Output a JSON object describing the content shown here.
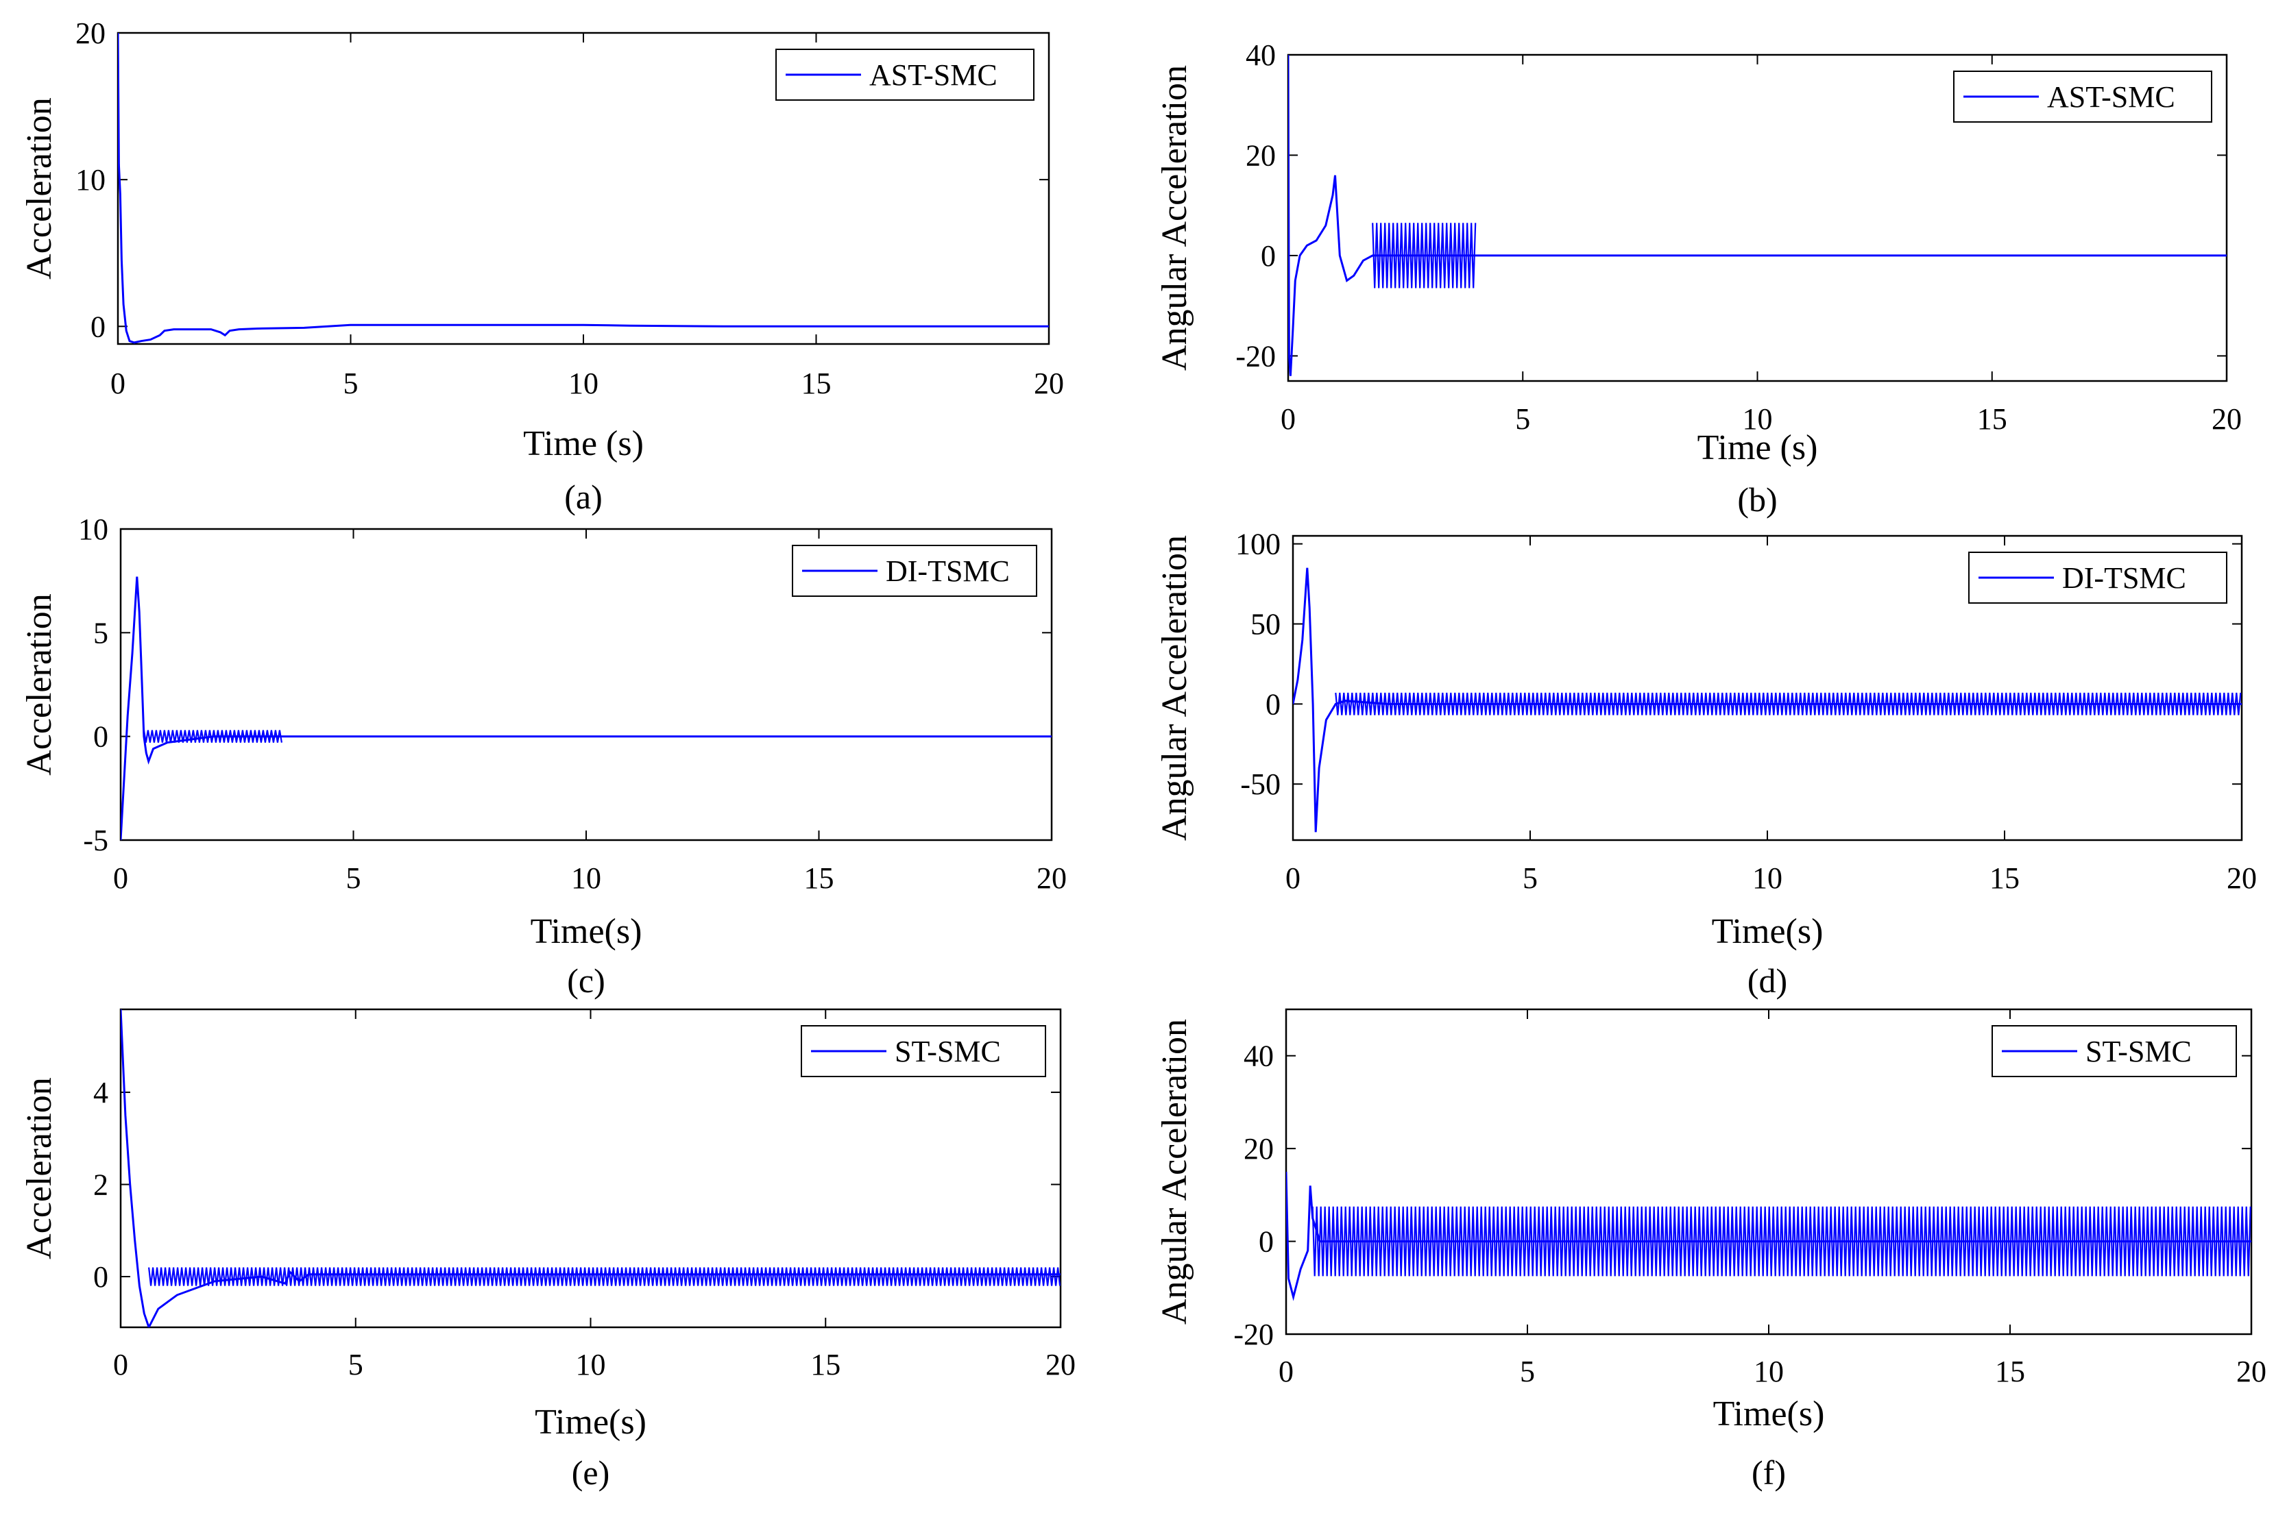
{
  "colors": {
    "series": "#0000ff",
    "axis": "#000000",
    "background": "#ffffff"
  },
  "chart_data": [
    {
      "panel": "(a)",
      "type": "line",
      "xlabel": "Time (s)",
      "ylabel": "Acceleration",
      "xlim": [
        0,
        20
      ],
      "ylim": [
        -1.2,
        20
      ],
      "xticks": [
        0,
        5,
        10,
        15,
        20
      ],
      "yticks": [
        0,
        10,
        20
      ],
      "legend": "AST-SMC",
      "legend_position": "top-right",
      "series": [
        {
          "name": "AST-SMC",
          "x": [
            0,
            0.02,
            0.05,
            0.08,
            0.12,
            0.18,
            0.25,
            0.35,
            0.5,
            0.7,
            0.9,
            1.0,
            1.2,
            1.6,
            2.0,
            2.2,
            2.3,
            2.4,
            2.6,
            3.0,
            4.0,
            5.0,
            7.0,
            10.0,
            11.0,
            13.0,
            15.0,
            20.0
          ],
          "y": [
            20,
            11,
            9,
            4.5,
            1.5,
            -0.3,
            -1.0,
            -1.1,
            -1.0,
            -0.9,
            -0.6,
            -0.3,
            -0.2,
            -0.2,
            -0.2,
            -0.4,
            -0.6,
            -0.3,
            -0.2,
            -0.15,
            -0.1,
            0.1,
            0.1,
            0.1,
            0.05,
            0,
            0,
            0
          ]
        }
      ]
    },
    {
      "panel": "(b)",
      "type": "line",
      "xlabel": "Time (s)",
      "ylabel": "Angular Acceleration",
      "xlim": [
        0,
        20
      ],
      "ylim": [
        -25,
        40
      ],
      "xticks": [
        0,
        5,
        10,
        15,
        20
      ],
      "yticks": [
        -20,
        0,
        20,
        40
      ],
      "legend": "AST-SMC",
      "legend_position": "top-right",
      "series": [
        {
          "name": "AST-SMC",
          "x": [
            0,
            0.02,
            0.05,
            0.1,
            0.15,
            0.25,
            0.4,
            0.6,
            0.8,
            0.95,
            1.0,
            1.1,
            1.25,
            1.4,
            1.6,
            1.8,
            2.0,
            4.0,
            20.0
          ],
          "y": [
            40,
            -20,
            -24,
            -15,
            -5,
            0,
            2,
            3,
            6,
            12,
            16,
            0,
            -5,
            -4,
            -1,
            0,
            0,
            0,
            0
          ]
        }
      ],
      "oscillation": {
        "from": 1.8,
        "to": 4.0,
        "amplitude": 6.5
      }
    },
    {
      "panel": "(c)",
      "type": "line",
      "xlabel": "Time(s)",
      "ylabel": "Acceleration",
      "xlim": [
        0,
        20
      ],
      "ylim": [
        -5,
        10
      ],
      "xticks": [
        0,
        5,
        10,
        15,
        20
      ],
      "yticks": [
        -5,
        0,
        5,
        10
      ],
      "legend": "DI-TSMC",
      "legend_position": "top-right",
      "series": [
        {
          "name": "DI-TSMC",
          "x": [
            0,
            0.05,
            0.15,
            0.25,
            0.35,
            0.4,
            0.45,
            0.5,
            0.55,
            0.6,
            0.7,
            1.0,
            2.0,
            3.5,
            20.0
          ],
          "y": [
            -5,
            -3,
            1,
            4,
            7.7,
            6,
            3,
            0,
            -0.8,
            -1.2,
            -0.6,
            -0.3,
            0,
            0,
            0
          ]
        }
      ],
      "oscillation": {
        "from": 0.5,
        "to": 3.5,
        "amplitude": 0.3
      }
    },
    {
      "panel": "(d)",
      "type": "line",
      "xlabel": "Time(s)",
      "ylabel": "Angular Acceleration",
      "xlim": [
        0,
        20
      ],
      "ylim": [
        -85,
        105
      ],
      "xticks": [
        0,
        5,
        10,
        15,
        20
      ],
      "yticks": [
        -50,
        0,
        50,
        100
      ],
      "legend": "DI-TSMC",
      "legend_position": "top-right",
      "series": [
        {
          "name": "DI-TSMC",
          "x": [
            0,
            0.1,
            0.2,
            0.3,
            0.35,
            0.42,
            0.48,
            0.55,
            0.7,
            0.9,
            1.1,
            2.0,
            20.0
          ],
          "y": [
            0,
            15,
            40,
            85,
            60,
            0,
            -80,
            -40,
            -10,
            0,
            2,
            0,
            0
          ]
        }
      ],
      "oscillation": {
        "from": 0.9,
        "to": 20.0,
        "amplitude": 7
      }
    },
    {
      "panel": "(e)",
      "type": "line",
      "xlabel": "Time(s)",
      "ylabel": "Acceleration",
      "xlim": [
        0,
        20
      ],
      "ylim": [
        -1.1,
        5.8
      ],
      "xticks": [
        0,
        5,
        10,
        15,
        20
      ],
      "yticks": [
        0,
        2,
        4
      ],
      "legend": "ST-SMC",
      "legend_position": "top-right",
      "series": [
        {
          "name": "ST-SMC",
          "x": [
            0,
            0.1,
            0.2,
            0.3,
            0.4,
            0.5,
            0.6,
            0.8,
            1.2,
            2.0,
            3.0,
            3.5,
            3.6,
            3.8,
            4.0,
            5.0,
            20.0
          ],
          "y": [
            5.8,
            3.5,
            2.0,
            0.8,
            -0.2,
            -0.8,
            -1.1,
            -0.7,
            -0.4,
            -0.1,
            0,
            -0.15,
            0.1,
            -0.1,
            0.05,
            0.05,
            0.05
          ]
        }
      ],
      "oscillation": {
        "from": 0.6,
        "to": 20.0,
        "amplitude": 0.2
      }
    },
    {
      "panel": "(f)",
      "type": "line",
      "xlabel": "Time(s)",
      "ylabel": "Angular Acceleration",
      "xlim": [
        0,
        20
      ],
      "ylim": [
        -20,
        50
      ],
      "xticks": [
        0,
        5,
        10,
        15,
        20
      ],
      "yticks": [
        -20,
        0,
        20,
        40
      ],
      "legend": "ST-SMC",
      "legend_position": "top-right",
      "series": [
        {
          "name": "ST-SMC",
          "x": [
            0,
            0.05,
            0.15,
            0.3,
            0.45,
            0.5,
            0.55,
            0.7,
            1.0,
            2.0,
            3.5,
            4.0,
            20.0
          ],
          "y": [
            15,
            -8,
            -12,
            -6,
            -2,
            12,
            5,
            0,
            0,
            0,
            0,
            0,
            0
          ]
        }
      ],
      "oscillation": {
        "from": 0.55,
        "to": 20.0,
        "amplitude": 7.5
      }
    }
  ]
}
